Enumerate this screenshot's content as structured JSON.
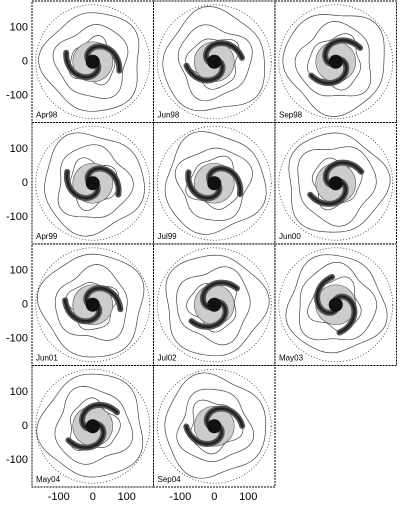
{
  "panels": [
    {
      "label": "Apr98"
    },
    {
      "label": "Jun98"
    },
    {
      "label": "Sep98"
    },
    {
      "label": "Apr99"
    },
    {
      "label": "Jul99"
    },
    {
      "label": "Jun00"
    },
    {
      "label": "Jun01"
    },
    {
      "label": "Jul02"
    },
    {
      "label": "May03"
    },
    {
      "label": "May04"
    },
    {
      "label": "Sep04"
    }
  ],
  "yticks": [
    100,
    0,
    -100
  ],
  "xticks": [
    -100,
    0,
    100
  ]
}
